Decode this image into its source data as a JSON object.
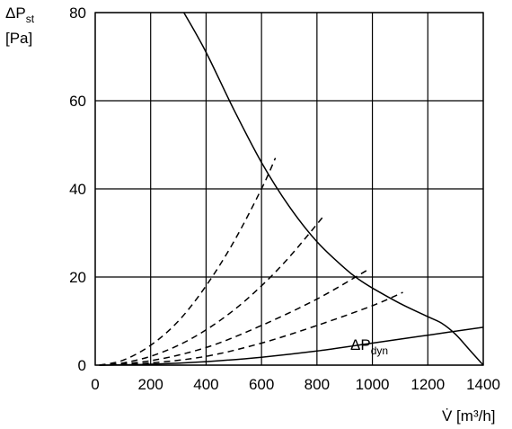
{
  "chart_data": {
    "type": "line",
    "ylabel_symbol": "ΔP",
    "ylabel_subscript": "st",
    "ylabel_unit": "[Pa]",
    "xlabel": "V̇ [m³/h]",
    "xlim": [
      0,
      1400
    ],
    "ylim": [
      0,
      80
    ],
    "x_ticks": [
      0,
      200,
      400,
      600,
      800,
      1000,
      1200,
      1400
    ],
    "y_ticks": [
      0,
      20,
      40,
      60,
      80
    ],
    "grid": true,
    "annotation_symbol": "ΔP",
    "annotation_subscript": "dyn",
    "series": [
      {
        "style": "solid",
        "x": [
          320,
          400,
          500,
          600,
          700,
          800,
          900,
          950,
          1000,
          1100,
          1200,
          1250,
          1300,
          1350,
          1400
        ],
        "y": [
          80,
          71,
          58,
          46,
          36,
          28,
          22,
          19.5,
          17.5,
          14,
          11,
          9.5,
          7,
          3.5,
          0
        ]
      },
      {
        "style": "solid",
        "x": [
          15,
          200,
          400,
          600,
          800,
          1000,
          1200,
          1400
        ],
        "y": [
          0,
          0.2,
          0.8,
          1.8,
          3.2,
          5,
          6.8,
          8.6
        ]
      },
      {
        "style": "dashed",
        "x": [
          15,
          100,
          200,
          300,
          400,
          500,
          600,
          650
        ],
        "y": [
          0,
          1.1,
          4.5,
          10,
          18,
          28,
          40,
          47
        ]
      },
      {
        "style": "dashed",
        "x": [
          15,
          100,
          200,
          300,
          400,
          500,
          600,
          700,
          820
        ],
        "y": [
          0,
          0.5,
          2,
          4.5,
          8,
          12.5,
          18,
          24.5,
          33.5
        ]
      },
      {
        "style": "dashed",
        "x": [
          15,
          200,
          400,
          600,
          800,
          980
        ],
        "y": [
          0,
          1,
          4,
          9,
          15,
          21.5
        ]
      },
      {
        "style": "dashed",
        "x": [
          15,
          200,
          400,
          600,
          800,
          1000,
          1110
        ],
        "y": [
          0,
          0.5,
          2,
          5,
          9,
          13.5,
          16.5
        ]
      }
    ]
  }
}
